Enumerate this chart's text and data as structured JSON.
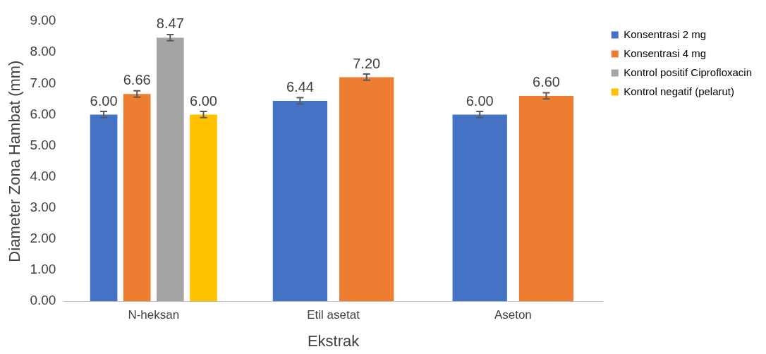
{
  "chart_data": {
    "type": "bar",
    "xlabel": "Ekstrak",
    "ylabel": "Diameter Zona Hambat (mm)",
    "categories": [
      "N-heksan",
      "Etil asetat",
      "Aseton"
    ],
    "series": [
      {
        "name": "Konsentrasi 2 mg",
        "color": "#4472c4",
        "values": [
          6.0,
          6.44,
          6.0
        ],
        "errors": [
          0.1,
          0.1,
          0.1
        ],
        "value_labels": [
          "6.00",
          "6.44",
          "6.00"
        ]
      },
      {
        "name": "Konsentrasi 4 mg",
        "color": "#ed7d31",
        "values": [
          6.66,
          7.2,
          6.6
        ],
        "errors": [
          0.1,
          0.1,
          0.1
        ],
        "value_labels": [
          "6.66",
          "7.20",
          "6.60"
        ]
      },
      {
        "name": "Kontrol positif Ciprofloxacin",
        "color": "#a5a5a5",
        "values": [
          8.47,
          null,
          null
        ],
        "errors": [
          0.1,
          null,
          null
        ],
        "value_labels": [
          "8.47",
          null,
          null
        ]
      },
      {
        "name": "Kontrol negatif (pelarut)",
        "color": "#ffc000",
        "values": [
          6.0,
          null,
          null
        ],
        "errors": [
          0.1,
          null,
          null
        ],
        "value_labels": [
          "6.00",
          null,
          null
        ]
      }
    ],
    "ylim": [
      0,
      9
    ],
    "yticks": [
      {
        "value": 0,
        "label": "0.00"
      },
      {
        "value": 1,
        "label": "1.00"
      },
      {
        "value": 2,
        "label": "2.00"
      },
      {
        "value": 3,
        "label": "3.00"
      },
      {
        "value": 4,
        "label": "4.00"
      },
      {
        "value": 5,
        "label": "5.00"
      },
      {
        "value": 6,
        "label": "6.00"
      },
      {
        "value": 7,
        "label": "7.00"
      },
      {
        "value": 8,
        "label": "8.00"
      },
      {
        "value": 9,
        "label": "9.00"
      }
    ],
    "grid": false,
    "legend": "right"
  }
}
